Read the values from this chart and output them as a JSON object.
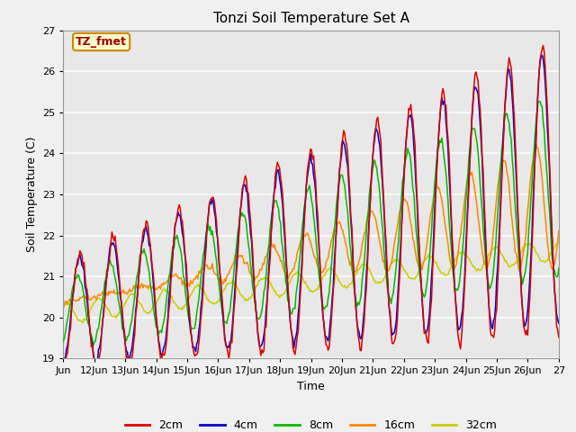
{
  "title": "Tonzi Soil Temperature Set A",
  "xlabel": "Time",
  "ylabel": "Soil Temperature (C)",
  "ylim": [
    19.0,
    27.0
  ],
  "yticks": [
    19.0,
    20.0,
    21.0,
    22.0,
    23.0,
    24.0,
    25.0,
    26.0,
    27.0
  ],
  "xtick_labels": [
    "Jun",
    "12Jun",
    "13Jun",
    "14Jun",
    "15Jun",
    "16Jun",
    "17Jun",
    "18Jun",
    "19Jun",
    "20Jun",
    "21Jun",
    "22Jun",
    "23Jun",
    "24Jun",
    "25Jun",
    "26Jun",
    "27"
  ],
  "series_colors": [
    "#dd0000",
    "#0000cc",
    "#00bb00",
    "#ff8800",
    "#cccc00"
  ],
  "series_labels": [
    "2cm",
    "4cm",
    "8cm",
    "16cm",
    "32cm"
  ],
  "legend_label": "TZ_fmet",
  "legend_box_facecolor": "#ffffcc",
  "legend_box_edgecolor": "#cc8800",
  "plot_bg_color": "#e8e8e8",
  "fig_bg_color": "#f0f0f0",
  "grid_color": "#ffffff",
  "n_points": 480,
  "days": 15.0
}
